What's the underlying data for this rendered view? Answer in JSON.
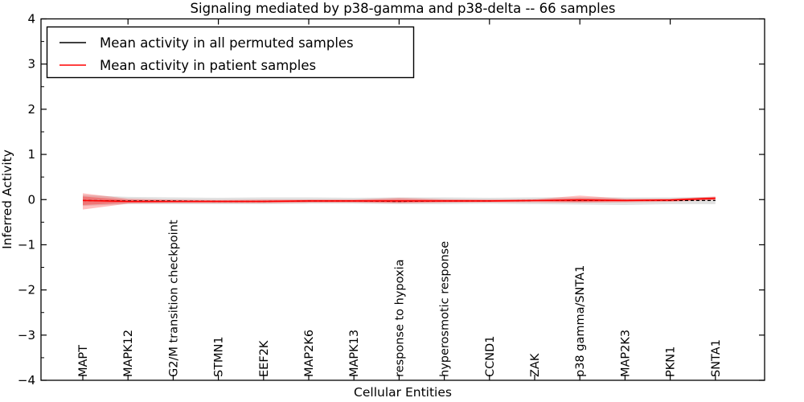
{
  "chart_data": {
    "type": "line",
    "title": "Signaling mediated by p38-gamma and p38-delta -- 66 samples",
    "xlabel": "Cellular Entities",
    "ylabel": "Inferred Activity",
    "ylim": [
      -4,
      4
    ],
    "y_major_ticks": [
      4,
      3,
      2,
      1,
      0,
      -1,
      -2,
      -3,
      -4
    ],
    "y_minor_step": 0.5,
    "grid": false,
    "legend_position": "upper-left",
    "categories": [
      "MAPT",
      "MAPK12",
      "G2/M transition checkpoint",
      "STMN1",
      "EEF2K",
      "MAP2K6",
      "MAPK13",
      "response to hypoxia",
      "hyperosmotic response",
      "CCND1",
      "ZAK",
      "p38 gamma/SNTA1",
      "MAP2K3",
      "PKN1",
      "SNTA1"
    ],
    "series": [
      {
        "name": "Mean activity in all permuted samples",
        "color": "#000000",
        "line_style": "dashed",
        "values": [
          -0.02,
          -0.03,
          -0.03,
          -0.04,
          -0.04,
          -0.03,
          -0.03,
          -0.04,
          -0.03,
          -0.03,
          -0.02,
          -0.02,
          -0.02,
          -0.02,
          -0.02
        ],
        "band_color": "#aaaaaa",
        "band_upper": [
          0.1,
          0.06,
          0.05,
          0.04,
          0.05,
          0.05,
          0.04,
          0.05,
          0.05,
          0.04,
          0.05,
          0.05,
          0.05,
          0.05,
          0.06
        ],
        "band_lower": [
          -0.14,
          -0.1,
          -0.1,
          -0.1,
          -0.1,
          -0.09,
          -0.09,
          -0.1,
          -0.1,
          -0.09,
          -0.1,
          -0.11,
          -0.12,
          -0.1,
          -0.1
        ]
      },
      {
        "name": "Mean activity in patient samples",
        "color": "#ff0000",
        "line_style": "solid",
        "values": [
          -0.02,
          -0.04,
          -0.04,
          -0.04,
          -0.04,
          -0.03,
          -0.03,
          -0.03,
          -0.03,
          -0.03,
          -0.02,
          -0.01,
          -0.02,
          -0.01,
          0.03
        ],
        "band_color": "#ff0000",
        "band_outer_upper": [
          0.14,
          0.02,
          0.0,
          -0.01,
          0.0,
          0.0,
          0.0,
          0.04,
          0.01,
          0.0,
          0.01,
          0.09,
          0.02,
          0.02,
          0.07
        ],
        "band_outer_lower": [
          -0.22,
          -0.09,
          -0.08,
          -0.08,
          -0.08,
          -0.07,
          -0.07,
          -0.08,
          -0.07,
          -0.06,
          -0.06,
          -0.07,
          -0.06,
          -0.05,
          -0.01
        ],
        "band_inner_upper": [
          0.07,
          -0.01,
          -0.02,
          -0.02,
          -0.02,
          -0.01,
          -0.01,
          0.0,
          -0.01,
          -0.01,
          -0.01,
          0.03,
          0.0,
          0.01,
          0.05
        ],
        "band_inner_lower": [
          -0.12,
          -0.07,
          -0.06,
          -0.06,
          -0.06,
          -0.05,
          -0.05,
          -0.06,
          -0.05,
          -0.05,
          -0.04,
          -0.05,
          -0.04,
          -0.03,
          0.0
        ]
      }
    ]
  }
}
